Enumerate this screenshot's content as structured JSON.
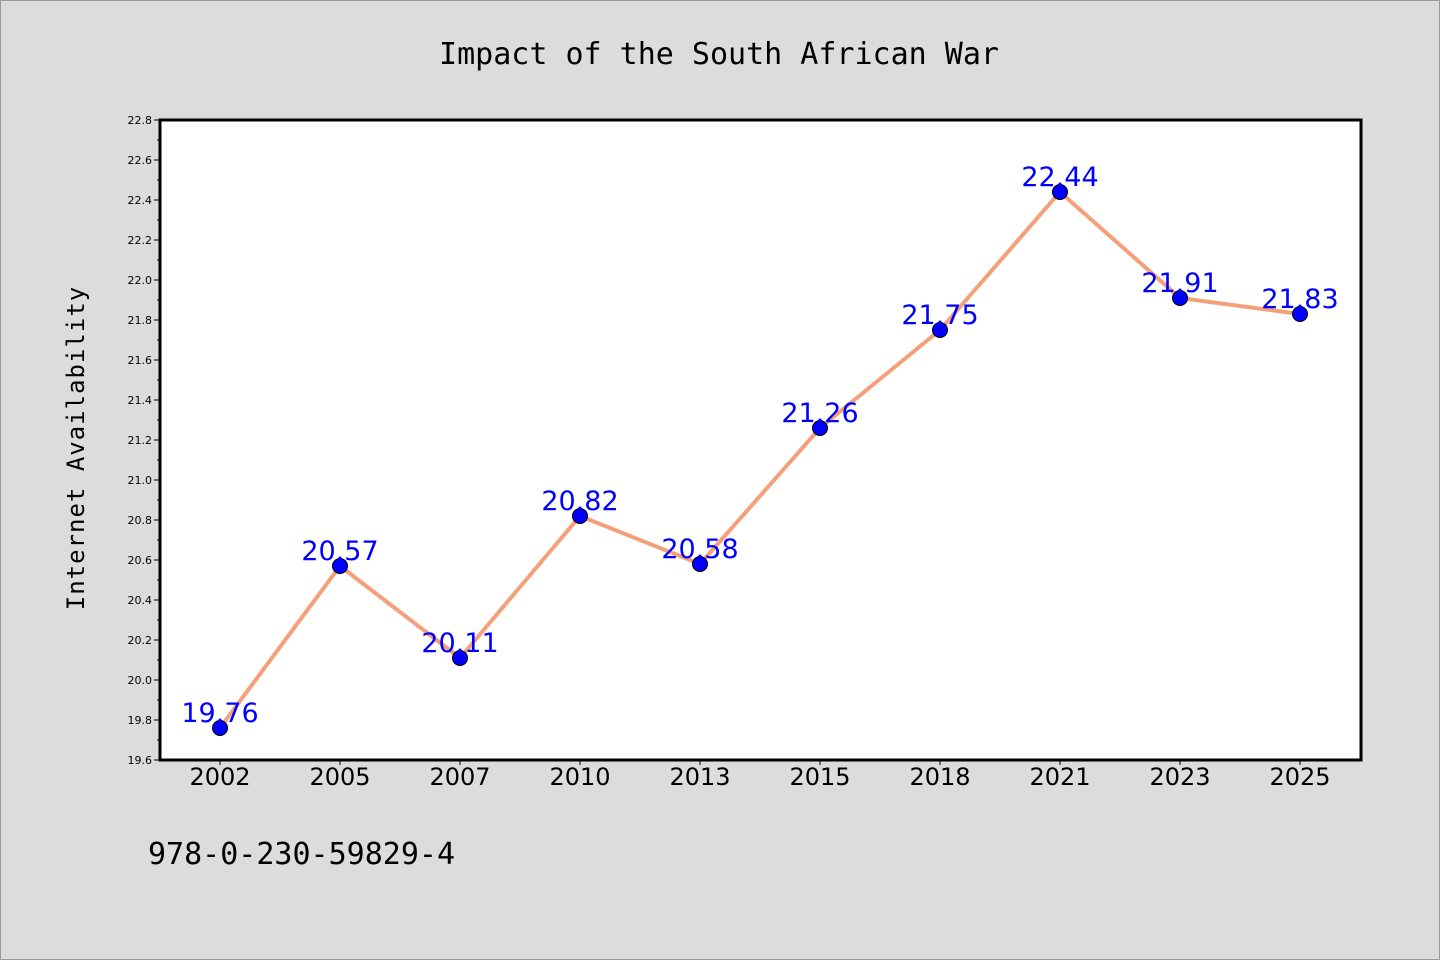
{
  "chart_data": {
    "type": "line",
    "title": "Impact of the South African War",
    "xlabel": "",
    "ylabel": "Internet Availability",
    "categories": [
      "2002",
      "2005",
      "2007",
      "2010",
      "2013",
      "2015",
      "2018",
      "2021",
      "2023",
      "2025"
    ],
    "series": [
      {
        "values": [
          19.76,
          20.57,
          20.11,
          20.82,
          20.58,
          21.26,
          21.75,
          22.44,
          21.91,
          21.83
        ],
        "line_color": "#f4a07a",
        "marker_color": "#0000ff"
      }
    ],
    "data_labels": [
      "19.76",
      "20.57",
      "20.11",
      "20.82",
      "20.58",
      "21.26",
      "21.75",
      "22.44",
      "21.91",
      "21.83"
    ],
    "ylim": [
      19.6,
      22.8
    ],
    "yticks": [
      "19.6",
      "19.8",
      "20.0",
      "20.2",
      "20.4",
      "20.6",
      "20.8",
      "21.0",
      "21.2",
      "21.4",
      "21.6",
      "21.8",
      "22.0",
      "22.2",
      "22.4",
      "22.6",
      "22.8"
    ],
    "grid": false,
    "legend": "none"
  },
  "footer": {
    "isbn": "978-0-230-59829-4"
  }
}
